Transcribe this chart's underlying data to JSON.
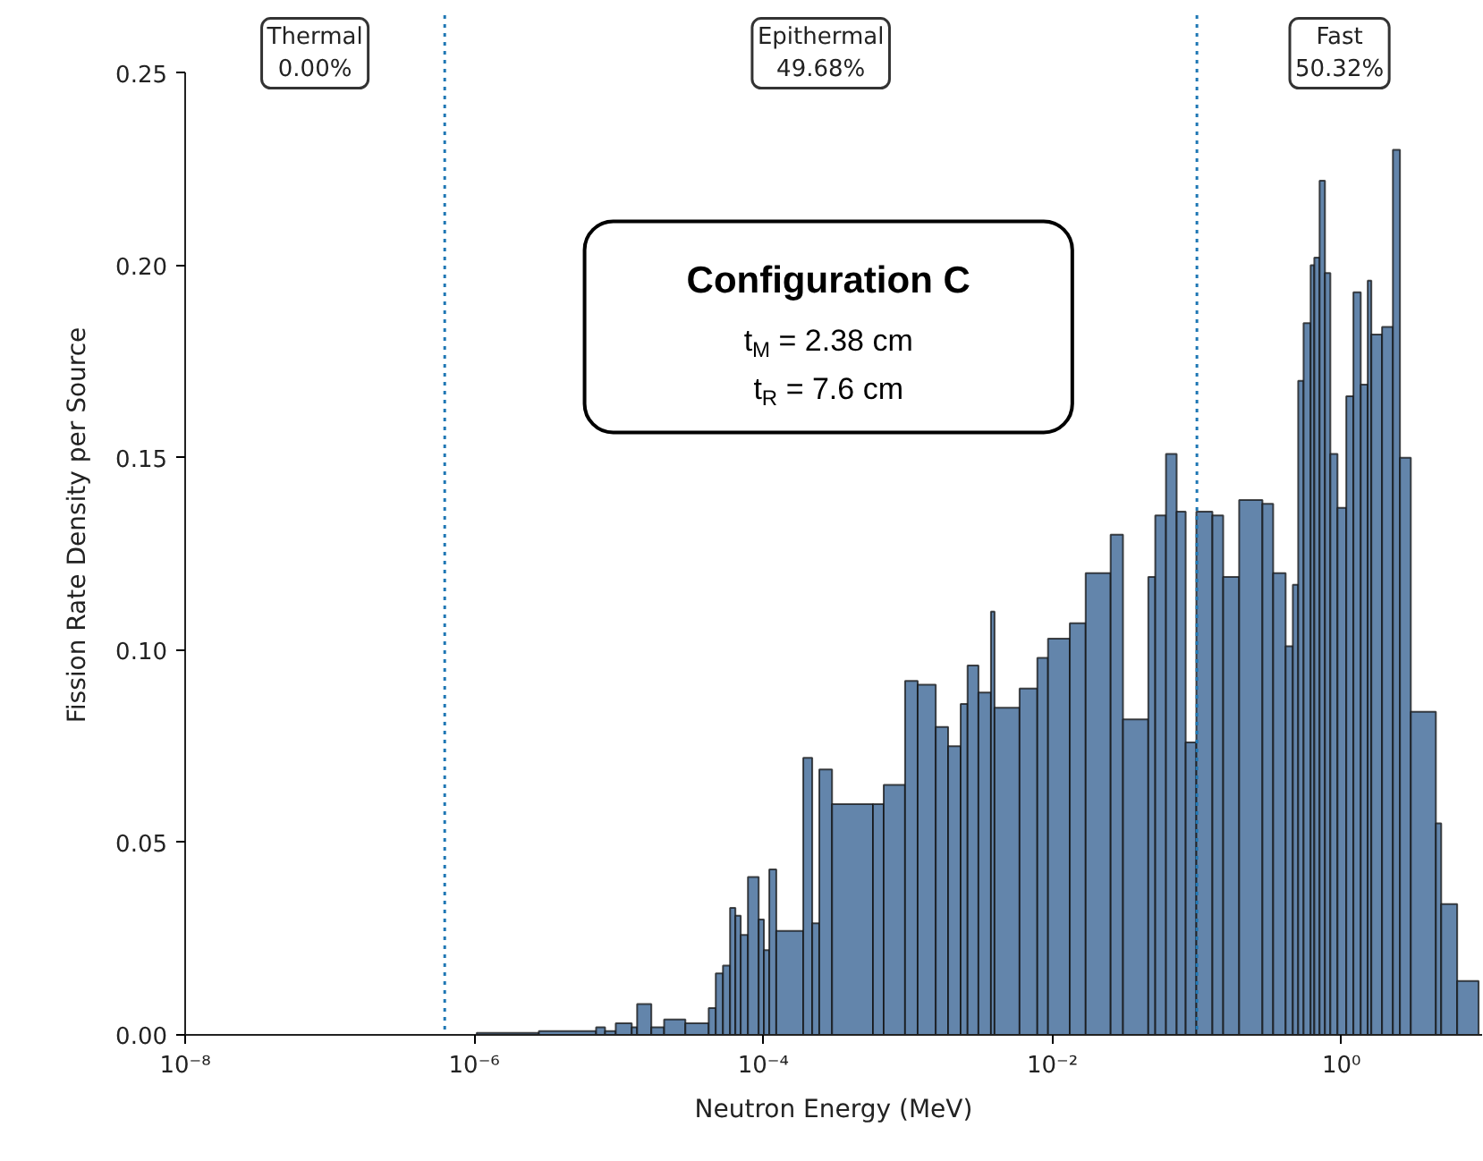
{
  "chart_data": {
    "type": "histogram",
    "xlabel": "Neutron Energy (MeV)",
    "ylabel": "Fission Rate Density per Source",
    "bins": [
      1.04e-06,
      2.8e-06,
      6.97e-06,
      8.04e-06,
      9.53e-06,
      1.23e-05,
      1.34e-05,
      1.68e-05,
      2.06e-05,
      2.89e-05,
      4.19e-05,
      4.69e-05,
      5.26e-05,
      5.89e-05,
      6.41e-05,
      6.98e-05,
      7.83e-05,
      9.29e-05,
      0.000101,
      0.00011,
      0.000123,
      0.000189,
      0.000218,
      0.000244,
      0.000299,
      0.000574,
      0.000681,
      0.000957,
      0.00117,
      0.00156,
      0.0019,
      0.00232,
      0.00259,
      0.00308,
      0.00376,
      0.00398,
      0.00593,
      0.00787,
      0.00933,
      0.0132,
      0.017,
      0.0253,
      0.0308,
      0.0461,
      0.0515,
      0.0611,
      0.0724,
      0.0836,
      0.0991,
      0.128,
      0.152,
      0.196,
      0.284,
      0.337,
      0.411,
      0.461,
      0.502,
      0.547,
      0.612,
      0.649,
      0.706,
      0.769,
      0.838,
      0.939,
      1.08,
      1.21,
      1.36,
      1.52,
      1.61,
      1.91,
      2.27,
      2.54,
      3.02,
      4.5,
      4.9,
      6.32,
      8.89
    ],
    "values": [
      0.0005,
      0.001,
      0.002,
      0.001,
      0.003,
      0.002,
      0.008,
      0.002,
      0.004,
      0.003,
      0.007,
      0.016,
      0.018,
      0.033,
      0.031,
      0.026,
      0.041,
      0.03,
      0.022,
      0.043,
      0.027,
      0.072,
      0.029,
      0.069,
      0.06,
      0.06,
      0.065,
      0.092,
      0.091,
      0.08,
      0.075,
      0.086,
      0.096,
      0.089,
      0.11,
      0.085,
      0.09,
      0.098,
      0.103,
      0.107,
      0.12,
      0.13,
      0.082,
      0.119,
      0.135,
      0.151,
      0.136,
      0.076,
      0.136,
      0.135,
      0.119,
      0.139,
      0.138,
      0.12,
      0.101,
      0.117,
      0.17,
      0.185,
      0.2,
      0.202,
      0.222,
      0.198,
      0.151,
      0.137,
      0.166,
      0.193,
      0.169,
      0.196,
      0.182,
      0.184,
      0.23,
      0.15,
      0.084,
      0.055,
      0.034,
      0.014
    ],
    "color": "#6385ab",
    "log": "x",
    "xlim": [
      1e-08,
      9.4
    ],
    "ylim": [
      0,
      0.25
    ],
    "xticks": [
      {
        "value": 1e-08,
        "label": "10⁻⁸"
      },
      {
        "value": 1e-06,
        "label": "10⁻⁶"
      },
      {
        "value": 0.0001,
        "label": "10⁻⁴"
      },
      {
        "value": 0.01,
        "label": "10⁻²"
      },
      {
        "value": 1,
        "label": "10⁰"
      }
    ],
    "yticks": [
      {
        "value": 0,
        "label": "0.00"
      },
      {
        "value": 0.05,
        "label": "0.05"
      },
      {
        "value": 0.1,
        "label": "0.10"
      },
      {
        "value": 0.15,
        "label": "0.15"
      },
      {
        "value": 0.2,
        "label": "0.20"
      },
      {
        "value": 0.25,
        "label": "0.25"
      }
    ],
    "grid": false,
    "ref_lines": [
      {
        "axis": "x",
        "value": 6.25e-07,
        "label": null,
        "color": "#1f77b4",
        "line_style": "dotted"
      },
      {
        "axis": "x",
        "value": 0.1,
        "label": null,
        "color": "#1f77b4",
        "line_style": "dotted"
      }
    ],
    "annotations": [
      "Thermal\n0.00%",
      "Epithermal\n49.68%",
      "Fast\n50.32%",
      "Configuration C\nt$_{M}$ = 2.38 cm\nt$_{R}$ = 7.6 cm"
    ]
  }
}
